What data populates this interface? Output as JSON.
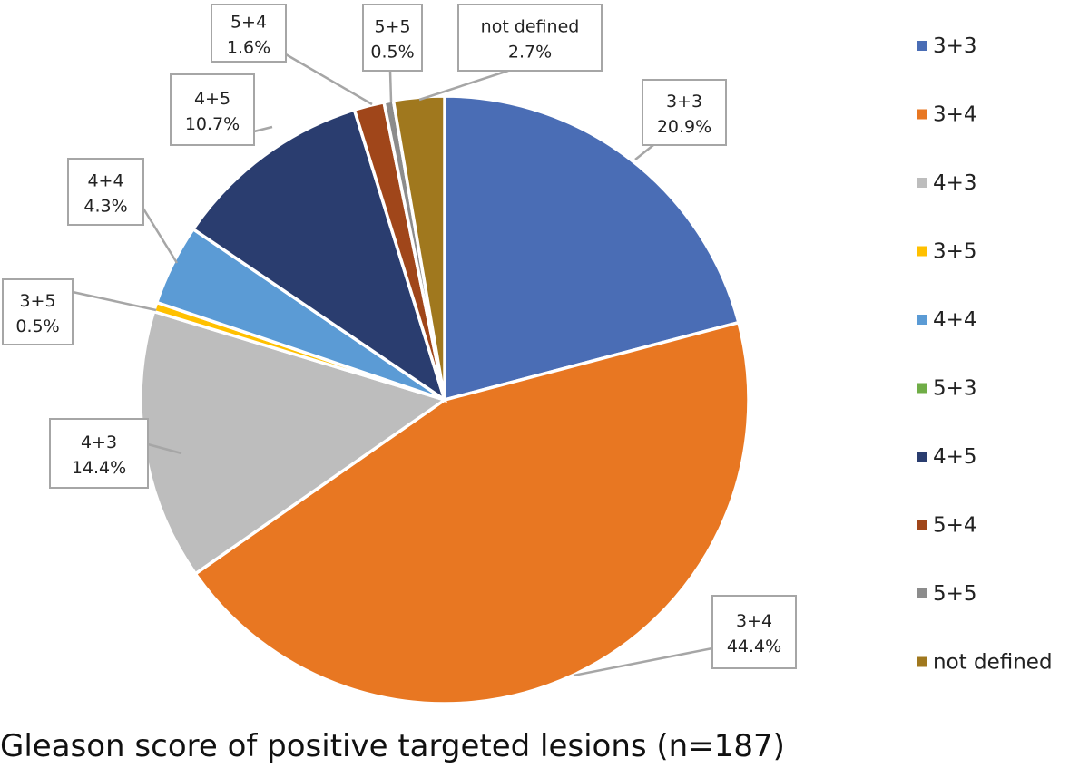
{
  "chart_data": {
    "type": "pie",
    "title": "Gleason score of positive targeted lesions (n=187)",
    "start_angle": "12 o'clock",
    "direction": "clockwise",
    "legend_position": "right",
    "categories": [
      "3+3",
      "3+4",
      "4+3",
      "3+5",
      "4+4",
      "5+3",
      "4+5",
      "5+4",
      "5+5",
      "not defined"
    ],
    "values": [
      20.9,
      44.4,
      14.4,
      0.5,
      4.3,
      0,
      10.7,
      1.6,
      0.5,
      2.7
    ],
    "data_labels": [
      "20.9%",
      "44.4%",
      "14.4%",
      "0.5%",
      "4.3%",
      "",
      "10.7%",
      "1.6%",
      "0.5%",
      "2.7%"
    ],
    "colors": [
      "#4a6db5",
      "#e87722",
      "#bdbdbd",
      "#ffc000",
      "#5b9bd5",
      "#70ad47",
      "#2a3d6f",
      "#a0461a",
      "#8c8c8c",
      "#a0781e"
    ]
  }
}
